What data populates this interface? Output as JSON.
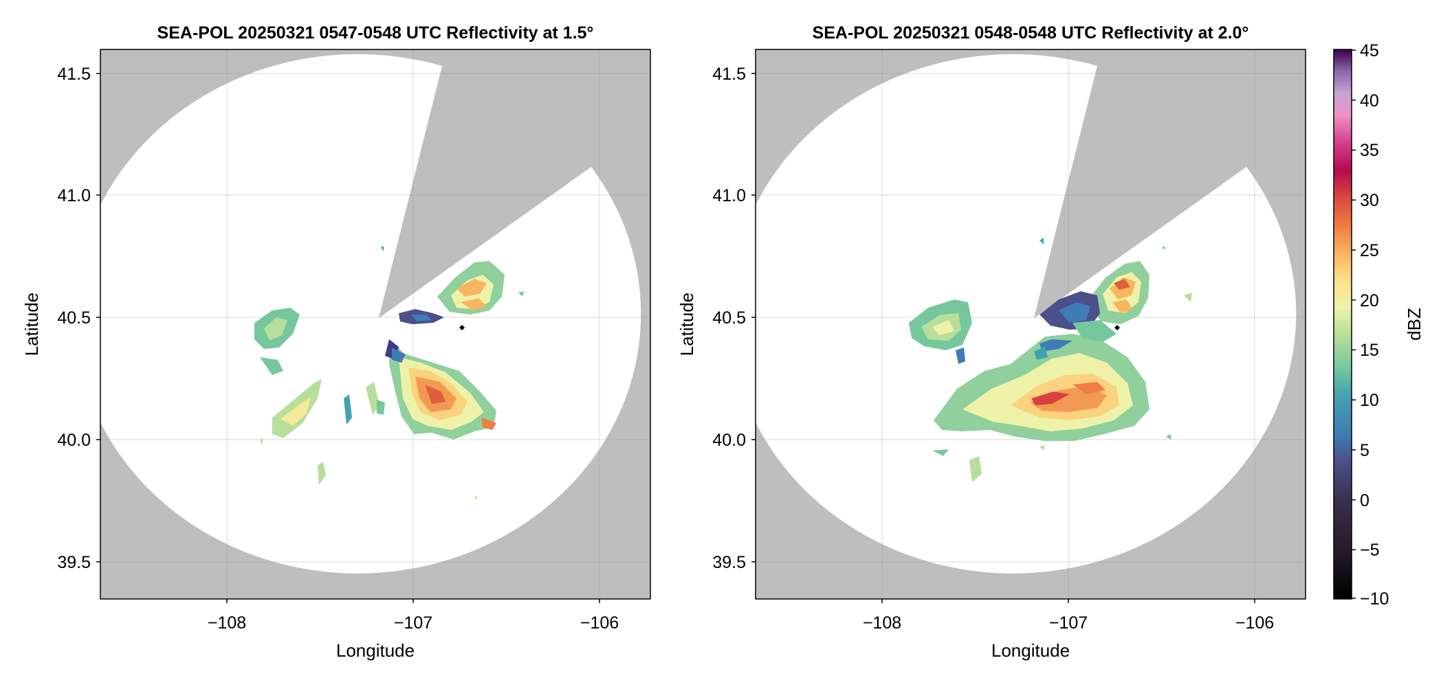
{
  "panels": [
    {
      "title": "SEA-POL 20250321 0547-0548 UTC Reflectivity at 1.5°",
      "xlabel": "Longitude",
      "ylabel": "Latitude"
    },
    {
      "title": "SEA-POL 20250321 0548-0548 UTC Reflectivity at 2.0°",
      "xlabel": "Longitude",
      "ylabel": "Latitude"
    }
  ],
  "x_ticks": [
    "−108",
    "−107",
    "−106"
  ],
  "y_ticks": [
    "41.5",
    "41.0",
    "40.5",
    "40.0",
    "39.5"
  ],
  "colorbar": {
    "label": "dBZ",
    "ticks": [
      "45",
      "40",
      "35",
      "30",
      "25",
      "20",
      "15",
      "10",
      "5",
      "0",
      "−5",
      "−10"
    ],
    "range": [
      -10,
      45
    ],
    "colormap": "spectral-reversed (purple low → green → yellow → red → magenta → purple high)"
  },
  "map_data": {
    "lon_range": [
      -108.67,
      -105.72
    ],
    "lat_range": [
      39.34,
      41.6
    ],
    "radar_site": {
      "lon": -107.19,
      "lat": 40.49
    },
    "radar_range_lat_deg": 1.08,
    "blocked_sector_deg": [
      25,
      60
    ],
    "outside_color": "#bebebe",
    "grid": true,
    "marker": {
      "lon": -106.74,
      "lat": 40.455,
      "symbol": "diamond",
      "color": "#000000"
    }
  },
  "colors": {
    "scale": [
      "#000000",
      "#231d26",
      "#38304e",
      "#4b4f8a",
      "#3f7cb5",
      "#42a3b0",
      "#76c79e",
      "#b7df9b",
      "#eef2a8",
      "#fde08a",
      "#f9b25e",
      "#ef7d44",
      "#d9483e",
      "#b30b4e",
      "#d23f8c",
      "#ee92c5",
      "#c7a3d2",
      "#8d66ac",
      "#5f2a82",
      "#3c004e"
    ]
  }
}
